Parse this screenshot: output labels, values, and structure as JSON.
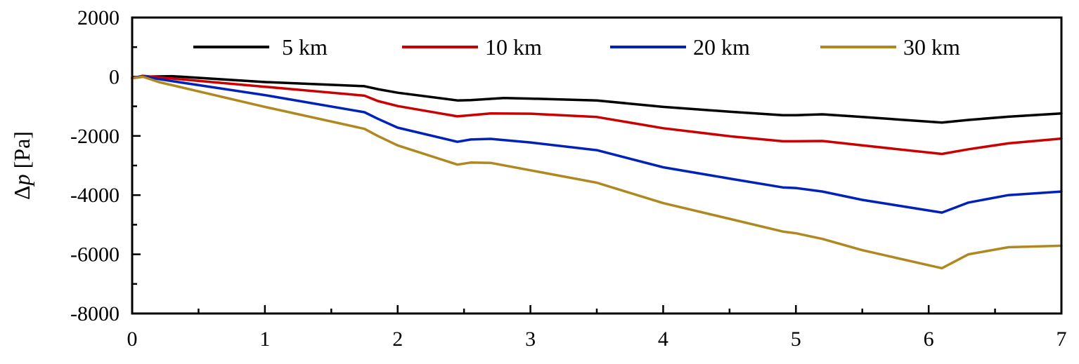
{
  "chart_data": {
    "type": "line",
    "title": "",
    "xlabel": "",
    "ylabel": "Δp [Pa]",
    "ylabel_parts": {
      "symbol": "Δ",
      "var": "p",
      "unit": " [Pa]"
    },
    "xlim": [
      0,
      7
    ],
    "ylim": [
      -8000,
      2000
    ],
    "xticks": [
      0,
      1,
      2,
      3,
      4,
      5,
      6,
      7
    ],
    "xtick_labels": [
      "0",
      "1",
      "2",
      "3",
      "4",
      "5",
      "6",
      "7"
    ],
    "yticks": [
      -8000,
      -6000,
      -4000,
      -2000,
      0,
      2000
    ],
    "ytick_labels": [
      "-8000",
      "-6000",
      "-4000",
      "-2000",
      "0",
      "2000"
    ],
    "grid": false,
    "legend_position": "top",
    "series": [
      {
        "name": "5 km",
        "color": "#000000",
        "points": [
          [
            0,
            -50
          ],
          [
            0.08,
            0
          ],
          [
            0.3,
            20
          ],
          [
            1.0,
            -180
          ],
          [
            1.75,
            -320
          ],
          [
            1.85,
            -420
          ],
          [
            2.0,
            -540
          ],
          [
            2.45,
            -800
          ],
          [
            2.55,
            -790
          ],
          [
            2.8,
            -720
          ],
          [
            3.0,
            -740
          ],
          [
            3.5,
            -800
          ],
          [
            4.0,
            -1020
          ],
          [
            4.5,
            -1180
          ],
          [
            4.9,
            -1300
          ],
          [
            5.0,
            -1300
          ],
          [
            5.2,
            -1270
          ],
          [
            5.5,
            -1360
          ],
          [
            6.1,
            -1550
          ],
          [
            6.3,
            -1460
          ],
          [
            6.6,
            -1350
          ],
          [
            7.0,
            -1240
          ]
        ]
      },
      {
        "name": "10 km",
        "color": "#cc0000",
        "points": [
          [
            0,
            -50
          ],
          [
            0.08,
            30
          ],
          [
            0.2,
            -20
          ],
          [
            1.0,
            -340
          ],
          [
            1.75,
            -640
          ],
          [
            1.85,
            -820
          ],
          [
            2.0,
            -990
          ],
          [
            2.45,
            -1340
          ],
          [
            2.55,
            -1300
          ],
          [
            2.7,
            -1240
          ],
          [
            3.0,
            -1250
          ],
          [
            3.5,
            -1360
          ],
          [
            4.0,
            -1740
          ],
          [
            4.5,
            -2010
          ],
          [
            4.9,
            -2180
          ],
          [
            5.0,
            -2180
          ],
          [
            5.2,
            -2170
          ],
          [
            5.5,
            -2320
          ],
          [
            6.1,
            -2610
          ],
          [
            6.3,
            -2450
          ],
          [
            6.6,
            -2250
          ],
          [
            7.0,
            -2090
          ]
        ]
      },
      {
        "name": "20 km",
        "color": "#0022bb",
        "points": [
          [
            0,
            -50
          ],
          [
            0.08,
            20
          ],
          [
            0.2,
            -80
          ],
          [
            1.0,
            -620
          ],
          [
            1.75,
            -1200
          ],
          [
            1.85,
            -1420
          ],
          [
            2.0,
            -1720
          ],
          [
            2.45,
            -2200
          ],
          [
            2.55,
            -2120
          ],
          [
            2.7,
            -2100
          ],
          [
            3.0,
            -2220
          ],
          [
            3.5,
            -2480
          ],
          [
            4.0,
            -3060
          ],
          [
            4.5,
            -3440
          ],
          [
            4.9,
            -3740
          ],
          [
            5.0,
            -3760
          ],
          [
            5.2,
            -3880
          ],
          [
            5.5,
            -4160
          ],
          [
            6.1,
            -4590
          ],
          [
            6.3,
            -4250
          ],
          [
            6.6,
            -4000
          ],
          [
            7.0,
            -3880
          ]
        ]
      },
      {
        "name": "30 km",
        "color": "#b08820",
        "points": [
          [
            0,
            -50
          ],
          [
            0.08,
            0
          ],
          [
            0.2,
            -180
          ],
          [
            1.0,
            -1020
          ],
          [
            1.75,
            -1760
          ],
          [
            1.85,
            -2000
          ],
          [
            2.0,
            -2320
          ],
          [
            2.45,
            -2970
          ],
          [
            2.55,
            -2900
          ],
          [
            2.7,
            -2910
          ],
          [
            3.0,
            -3160
          ],
          [
            3.5,
            -3580
          ],
          [
            4.0,
            -4270
          ],
          [
            4.5,
            -4800
          ],
          [
            4.9,
            -5230
          ],
          [
            5.0,
            -5290
          ],
          [
            5.2,
            -5480
          ],
          [
            5.5,
            -5860
          ],
          [
            6.1,
            -6470
          ],
          [
            6.3,
            -6000
          ],
          [
            6.6,
            -5760
          ],
          [
            7.0,
            -5710
          ]
        ]
      }
    ]
  }
}
